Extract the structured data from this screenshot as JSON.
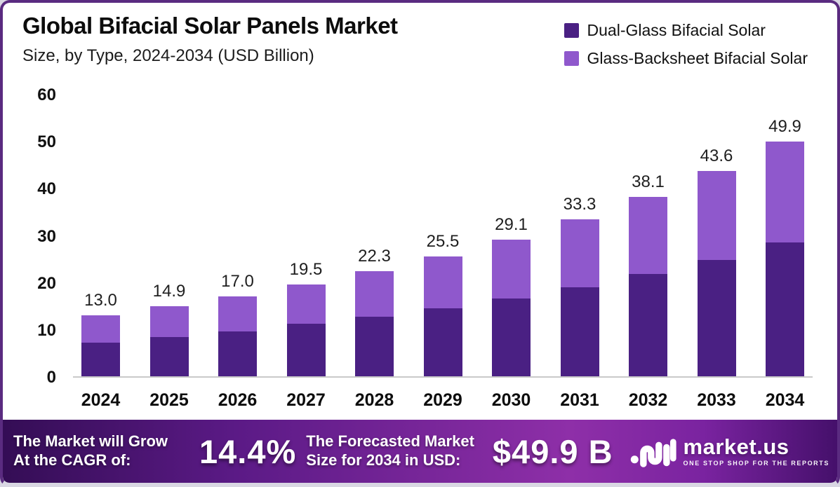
{
  "header": {
    "title": "Global Bifacial Solar Panels Market",
    "subtitle": "Size, by Type, 2024-2034 (USD Billion)"
  },
  "legend": [
    {
      "label": "Dual-Glass Bifacial Solar",
      "color": "#4A2083"
    },
    {
      "label": "Glass-Backsheet Bifacial Solar",
      "color": "#8F58CC"
    }
  ],
  "chart_data": {
    "type": "bar",
    "stacked": true,
    "categories": [
      "2024",
      "2025",
      "2026",
      "2027",
      "2028",
      "2029",
      "2030",
      "2031",
      "2032",
      "2033",
      "2034"
    ],
    "series": [
      {
        "name": "Dual-Glass Bifacial Solar",
        "color": "#4A2083",
        "values": [
          7.2,
          8.4,
          9.6,
          11.1,
          12.7,
          14.5,
          16.5,
          18.9,
          21.7,
          24.7,
          28.4
        ]
      },
      {
        "name": "Glass-Backsheet Bifacial Solar",
        "color": "#8F58CC",
        "values": [
          5.8,
          6.5,
          7.4,
          8.4,
          9.6,
          11.0,
          12.6,
          14.4,
          16.4,
          18.9,
          21.5
        ]
      }
    ],
    "totals": [
      13.0,
      14.9,
      17.0,
      19.5,
      22.3,
      25.5,
      29.1,
      33.3,
      38.1,
      43.6,
      49.9
    ],
    "total_labels": [
      "13.0",
      "14.9",
      "17.0",
      "19.5",
      "22.3",
      "25.5",
      "29.1",
      "33.3",
      "38.1",
      "43.6",
      "49.9"
    ],
    "title": "Global Bifacial Solar Panels Market",
    "xlabel": "",
    "ylabel": "",
    "ylim": [
      0,
      60
    ],
    "yticks": [
      0,
      10,
      20,
      30,
      40,
      50,
      60
    ],
    "grid": false,
    "legend_position": "top-right"
  },
  "footer": {
    "cagr_line1": "The Market will Grow",
    "cagr_line2": "At the CAGR of:",
    "cagr_value": "14.4%",
    "forecast_line1": "The Forecasted Market",
    "forecast_line2": "Size for 2034 in USD:",
    "forecast_value": "$49.9 B",
    "brand_name": "market.us",
    "brand_tagline": "ONE STOP SHOP FOR THE REPORTS"
  },
  "colors": {
    "bar_dark": "#4A2083",
    "bar_light": "#8F58CC",
    "card_border": "#5A2B80",
    "axis_line": "#C9C9C9",
    "footer_gradient_start": "#340D55",
    "footer_gradient_mid": "#8E2FA8",
    "footer_gradient_end": "#45106B"
  }
}
